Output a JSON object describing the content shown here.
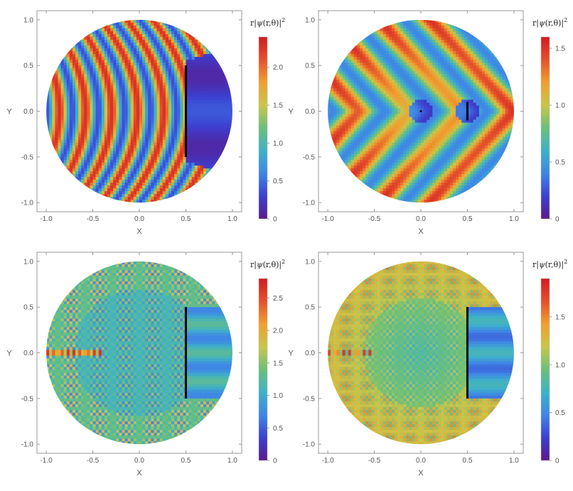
{
  "chart_data": [
    {
      "type": "heatmap",
      "panel": "top-left",
      "xlabel": "X",
      "ylabel": "Y",
      "xlim": [
        -1.1,
        1.1
      ],
      "ylim": [
        -1.1,
        1.1
      ],
      "xticks": [
        "-1.0",
        "-0.5",
        "0.0",
        "0.5",
        "1.0"
      ],
      "yticks": [
        "1.0",
        "0.5",
        "0.0",
        "-0.5",
        "-1.0"
      ],
      "colorbar": {
        "title": "r|ψ(r,θ)|²",
        "title_parts": [
          "r|",
          "ψ",
          "(r,θ)|",
          "2"
        ],
        "min": 0,
        "max": 2.4,
        "ticks": [
          "0",
          "0.5",
          "1.0",
          "1.5",
          "2.0"
        ],
        "tick_values": [
          0,
          0.5,
          1.0,
          1.5,
          2.0
        ]
      },
      "domain": "disk of radius 1.0",
      "barrier": {
        "x": 0.5,
        "y_from": -0.5,
        "y_to": 0.5
      },
      "marker": null,
      "pattern": "long-wavelength fringes, shadow region behind barrier"
    },
    {
      "type": "heatmap",
      "panel": "top-right",
      "xlabel": "X",
      "ylabel": "Y",
      "xlim": [
        -1.1,
        1.1
      ],
      "ylim": [
        -1.1,
        1.1
      ],
      "xticks": [
        "-1.0",
        "-0.5",
        "0.0",
        "0.5",
        "1.0"
      ],
      "yticks": [
        "1.0",
        "0.5",
        "0.0",
        "-0.5",
        "-1.0"
      ],
      "colorbar": {
        "title": "r|ψ(r,θ)|²",
        "title_parts": [
          "r|",
          "ψ",
          "(r,θ)|",
          "2"
        ],
        "min": 0,
        "max": 1.6,
        "ticks": [
          "0",
          "0.5",
          "1.0",
          "1.5"
        ],
        "tick_values": [
          0,
          0.5,
          1.0,
          1.5
        ]
      },
      "domain": "disk of radius 1.0",
      "barrier": {
        "x": 0.5,
        "y_from": -0.1,
        "y_to": 0.1
      },
      "marker": {
        "x": 0.0,
        "y": 0.0
      },
      "pattern": "broad chevron fringes"
    },
    {
      "type": "heatmap",
      "panel": "bottom-left",
      "xlabel": "X",
      "ylabel": "Y",
      "xlim": [
        -1.1,
        1.1
      ],
      "ylim": [
        -1.1,
        1.1
      ],
      "xticks": [
        "-1.0",
        "-0.5",
        "0.0",
        "0.5",
        "1.0"
      ],
      "yticks": [
        "1.0",
        "0.5",
        "0.0",
        "-0.5",
        "-1.0"
      ],
      "colorbar": {
        "title": "r|ψ(r,θ)|²",
        "title_parts": [
          "r|",
          "ψ",
          "(r,θ)|",
          "2"
        ],
        "min": 0,
        "max": 2.8,
        "ticks": [
          "0",
          "0.5",
          "1.0",
          "1.5",
          "2.0",
          "2.5"
        ],
        "tick_values": [
          0,
          0.5,
          1.0,
          1.5,
          2.0,
          2.5
        ]
      },
      "domain": "disk of radius 1.0",
      "barrier": {
        "x": 0.5,
        "y_from": -0.5,
        "y_to": 0.5
      },
      "marker": null,
      "pattern": "short-wavelength interference fringes"
    },
    {
      "type": "heatmap",
      "panel": "bottom-right",
      "xlabel": "X",
      "ylabel": "Y",
      "xlim": [
        -1.1,
        1.1
      ],
      "ylim": [
        -1.1,
        1.1
      ],
      "xticks": [
        "-1.0",
        "-0.5",
        "0.0",
        "0.5",
        "1.0"
      ],
      "yticks": [
        "1.0",
        "0.5",
        "0.0",
        "-0.5",
        "-1.0"
      ],
      "colorbar": {
        "title": "r|ψ(r,θ)|²",
        "title_parts": [
          "r|",
          "ψ",
          "(r,θ)|",
          "2"
        ],
        "min": 0,
        "max": 1.9,
        "ticks": [
          "0",
          "0.5",
          "1.0",
          "1.5"
        ],
        "tick_values": [
          0,
          0.5,
          1.0,
          1.5
        ]
      },
      "domain": "disk of radius 1.0",
      "barrier": {
        "x": 0.5,
        "y_from": -0.5,
        "y_to": 0.5
      },
      "marker": null,
      "pattern": "fine interference fringes"
    }
  ],
  "colormap": [
    "#5b1a8c",
    "#3c3fd0",
    "#3f86e6",
    "#3fb1c8",
    "#6cc07a",
    "#c8c64a",
    "#f0a030",
    "#e4502c",
    "#d01c22"
  ]
}
